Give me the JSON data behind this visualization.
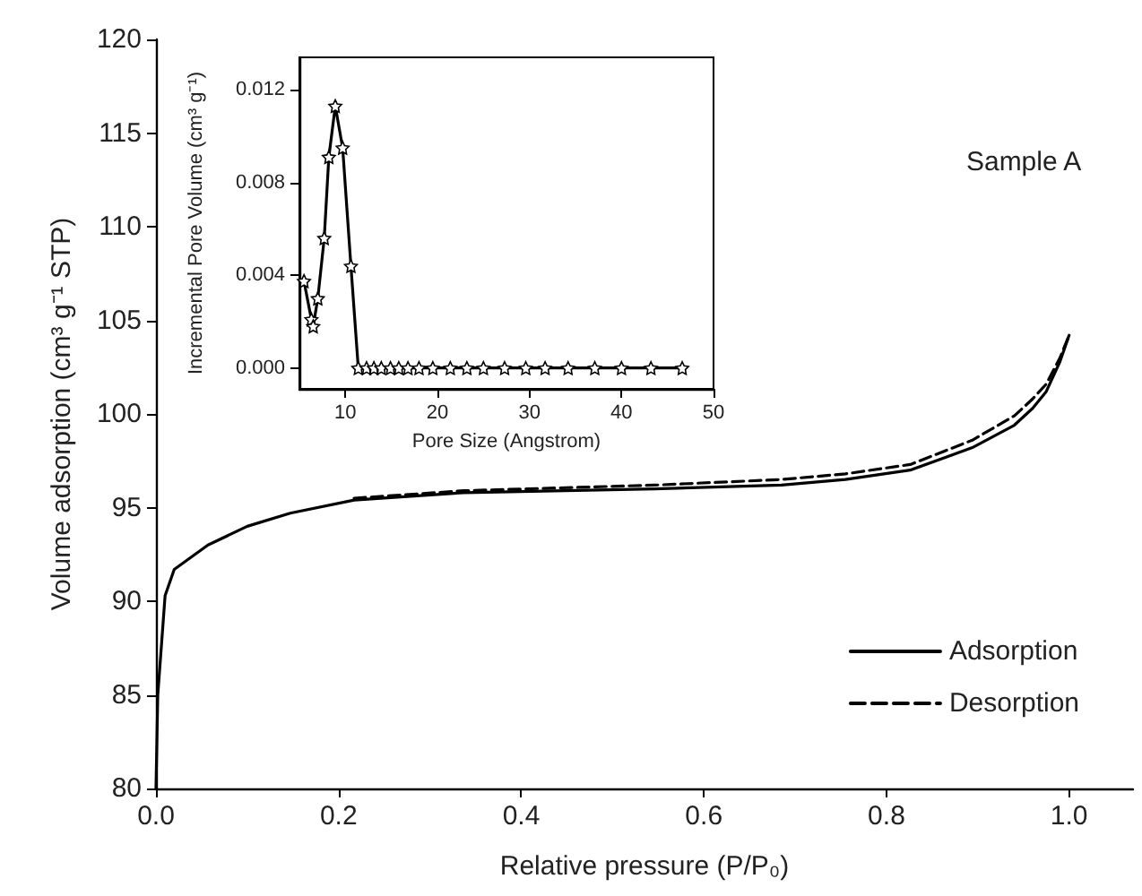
{
  "chart_data": [
    {
      "type": "line",
      "xlabel": "Relative pressure (P/P₀)",
      "ylabel": "Volume adsorption (cm³ g⁻¹ STP)",
      "annotations": [
        "Sample A"
      ],
      "xlim": [
        0,
        1.07
      ],
      "ylim": [
        80,
        120
      ],
      "xticks": [
        {
          "value": 0,
          "label": "0.0"
        },
        {
          "value": 0.2,
          "label": "0.2"
        },
        {
          "value": 0.4,
          "label": "0.4"
        },
        {
          "value": 0.6,
          "label": "0.6"
        },
        {
          "value": 0.8,
          "label": "0.8"
        },
        {
          "value": 1,
          "label": "1.0"
        }
      ],
      "yticks": [
        80,
        85,
        90,
        95,
        100,
        105,
        110,
        115,
        120
      ],
      "grid": false,
      "legend": "bottom right",
      "marker": "none",
      "series": [
        {
          "name": "Adsorption",
          "color": "#000000",
          "line_style": "solid",
          "x": [
            0,
            0.002,
            0.01,
            0.02,
            0.057,
            0.1,
            0.147,
            0.217,
            0.337,
            0.546,
            0.685,
            0.755,
            0.826,
            0.894,
            0.94,
            0.96,
            0.975,
            0.99,
            1.0
          ],
          "values": [
            80,
            85,
            90.3,
            91.7,
            93.0,
            94.0,
            94.7,
            95.4,
            95.8,
            96.0,
            96.2,
            96.5,
            97.0,
            98.2,
            99.4,
            100.3,
            101.2,
            102.8,
            104.2
          ]
        },
        {
          "name": "Desorption",
          "color": "#000000",
          "line_style": "dashed",
          "x": [
            0.217,
            0.337,
            0.546,
            0.685,
            0.755,
            0.826,
            0.894,
            0.94,
            0.96,
            0.975,
            0.99,
            1.0
          ],
          "values": [
            95.5,
            95.9,
            96.2,
            96.5,
            96.8,
            97.3,
            98.6,
            99.9,
            100.8,
            101.6,
            103.0,
            104.2
          ]
        }
      ]
    },
    {
      "type": "line",
      "xlabel": "Pore Size (Angstrom)",
      "ylabel": "Incremental Pore Volume (cm³ g⁻¹)",
      "xlim": [
        5,
        50
      ],
      "ylim": [
        -0.0009,
        0.0134
      ],
      "xticks": [
        10,
        20,
        30,
        40,
        50
      ],
      "yticks": [
        {
          "value": 0,
          "label": "0.000"
        },
        {
          "value": 0.004,
          "label": "0.004"
        },
        {
          "value": 0.008,
          "label": "0.008"
        },
        {
          "value": 0.012,
          "label": "0.012"
        }
      ],
      "grid": false,
      "marker": "star",
      "series": [
        {
          "color": "#000000",
          "x": [
            5.5,
            6.3,
            6.5,
            7.0,
            7.7,
            8.2,
            8.9,
            9.7,
            10.6,
            11.4,
            12.3,
            13.1,
            13.9,
            14.9,
            15.8,
            16.8,
            18.0,
            19.5,
            21.4,
            23.2,
            25.0,
            27.3,
            29.6,
            31.7,
            34.2,
            37.1,
            40.0,
            43.2,
            46.6
          ],
          "values": [
            0.00375,
            0.0021,
            0.0018,
            0.003,
            0.0056,
            0.0091,
            0.0113,
            0.0095,
            0.0044,
            0,
            0,
            0,
            0,
            0,
            0,
            0,
            0,
            0,
            0,
            0,
            0,
            0,
            0,
            0,
            0,
            0,
            0,
            0,
            0
          ]
        }
      ]
    }
  ]
}
